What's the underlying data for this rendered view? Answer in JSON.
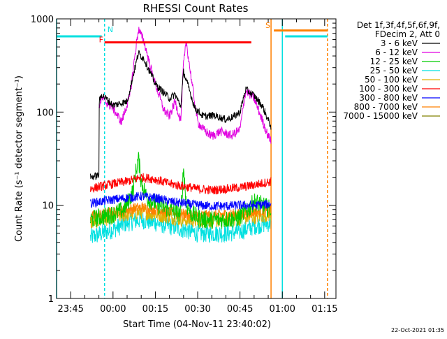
{
  "chart_data": {
    "type": "line",
    "title": "RHESSI Count Rates",
    "xlabel": "Start Time (04-Nov-11 23:40:02)",
    "ylabel": "Count Rate (s⁻¹ detector segment⁻¹)",
    "y_scale": "log",
    "ylim": [
      1,
      1000
    ],
    "xlim": [
      "23:40",
      "01:19"
    ],
    "x_ticks": [
      "23:45",
      "00:00",
      "00:15",
      "00:30",
      "00:45",
      "01:00",
      "01:15"
    ],
    "y_ticks": [
      "1",
      "10",
      "100",
      "1000"
    ],
    "legend": {
      "placement": "right",
      "header_line1": "Det 1f,3f,4f,5f,6f,9f,",
      "header_line2": "FDecim 2, Att 0",
      "entries": [
        {
          "label": "3 - 6 keV",
          "color": "#000000"
        },
        {
          "label": "6 - 12 keV",
          "color": "#e000e0"
        },
        {
          "label": "12 - 25 keV",
          "color": "#00cc00"
        },
        {
          "label": "25 - 50 keV",
          "color": "#00e0e0"
        },
        {
          "label": "50 - 100 keV",
          "color": "#e0b000"
        },
        {
          "label": "100 - 300 keV",
          "color": "#ff0000"
        },
        {
          "label": "300 - 800 keV",
          "color": "#0000ff"
        },
        {
          "label": "800 - 7000 keV",
          "color": "#ff8000"
        },
        {
          "label": "7000 - 15000 keV",
          "color": "#808000"
        }
      ]
    },
    "data_start": "23:52",
    "data_end": "00:56",
    "series": [
      {
        "name": "3 - 6 keV",
        "color": "#000000",
        "noise": 0.04,
        "x": [
          "23:52",
          "23:55",
          "23:55",
          "23:56",
          "00:00",
          "00:05",
          "00:09",
          "00:11",
          "00:15",
          "00:20",
          "00:22",
          "00:24",
          "00:25",
          "00:27",
          "00:29",
          "00:32",
          "00:36",
          "00:40",
          "00:43",
          "00:45",
          "00:47",
          "00:50",
          "00:53",
          "00:55",
          "00:56"
        ],
        "y": [
          20,
          21,
          125,
          155,
          118,
          130,
          430,
          370,
          200,
          140,
          155,
          115,
          270,
          175,
          110,
          90,
          92,
          83,
          90,
          100,
          175,
          150,
          115,
          82,
          70
        ]
      },
      {
        "name": "6 - 12 keV",
        "color": "#e000e0",
        "noise": 0.05,
        "x": [
          "23:55",
          "23:56",
          "00:00",
          "00:03",
          "00:06",
          "00:08",
          "00:09",
          "00:11",
          "00:14",
          "00:18",
          "00:20",
          "00:22",
          "00:24",
          "00:25",
          "00:26",
          "00:28",
          "00:30",
          "00:32",
          "00:35",
          "00:38",
          "00:42",
          "00:45",
          "00:47",
          "00:50",
          "00:53",
          "00:55",
          "00:56"
        ],
        "y": [
          115,
          140,
          110,
          78,
          150,
          460,
          780,
          570,
          250,
          105,
          90,
          130,
          80,
          330,
          560,
          200,
          78,
          65,
          55,
          62,
          56,
          65,
          170,
          140,
          80,
          55,
          50
        ]
      },
      {
        "name": "12 - 25 keV",
        "color": "#00cc00",
        "noise": 0.1,
        "x": [
          "23:52",
          "23:56",
          "00:00",
          "00:04",
          "00:07",
          "00:08",
          "00:09",
          "00:10",
          "00:12",
          "00:16",
          "00:20",
          "00:24",
          "00:25",
          "00:26",
          "00:28",
          "00:32",
          "00:38",
          "00:44",
          "00:48",
          "00:50",
          "00:53",
          "00:56"
        ],
        "y": [
          7,
          7.5,
          8,
          9,
          14,
          22,
          32,
          18,
          12,
          10,
          9,
          8,
          25,
          10,
          8,
          7,
          7,
          7.2,
          9,
          11,
          10,
          9
        ]
      },
      {
        "name": "25 - 50 keV",
        "color": "#00e0e0",
        "noise": 0.1,
        "x": [
          "23:52",
          "23:56",
          "00:00",
          "00:05",
          "00:10",
          "00:15",
          "00:20",
          "00:25",
          "00:30",
          "00:35",
          "00:40",
          "00:45",
          "00:50",
          "00:56"
        ],
        "y": [
          4.5,
          5,
          5.5,
          6.5,
          7,
          6.5,
          6,
          5.5,
          5,
          5,
          5,
          5.2,
          6,
          6.5
        ]
      },
      {
        "name": "50 - 100 keV",
        "color": "#e0b000",
        "noise": 0.08,
        "x": [
          "23:52",
          "23:56",
          "00:00",
          "00:05",
          "00:10",
          "00:15",
          "00:20",
          "00:25",
          "00:30",
          "00:35",
          "00:40",
          "00:45",
          "00:50",
          "00:56"
        ],
        "y": [
          6.5,
          7,
          7.5,
          8,
          8.5,
          8,
          7.5,
          7,
          6.8,
          6.8,
          7,
          7.2,
          7.5,
          8
        ]
      },
      {
        "name": "100 - 300 keV",
        "color": "#ff0000",
        "noise": 0.05,
        "x": [
          "23:52",
          "23:56",
          "00:00",
          "00:05",
          "00:10",
          "00:15",
          "00:20",
          "00:25",
          "00:30",
          "00:35",
          "00:40",
          "00:45",
          "00:50",
          "00:56"
        ],
        "y": [
          15,
          16,
          17,
          18,
          20,
          19,
          17,
          16,
          15,
          14.5,
          15,
          15.5,
          16.5,
          18
        ]
      },
      {
        "name": "300 - 800 keV",
        "color": "#0000ff",
        "noise": 0.05,
        "x": [
          "23:52",
          "23:56",
          "00:00",
          "00:05",
          "00:10",
          "00:15",
          "00:20",
          "00:25",
          "00:30",
          "00:35",
          "00:40",
          "00:45",
          "00:50",
          "00:56"
        ],
        "y": [
          10.5,
          11,
          11.5,
          12,
          12.5,
          12,
          11,
          10.5,
          10,
          9.8,
          9.8,
          10,
          10,
          10.3
        ]
      },
      {
        "name": "800 - 7000 keV",
        "color": "#ff8000",
        "noise": 0.06,
        "x": [
          "23:52",
          "23:56",
          "00:00",
          "00:05",
          "00:10",
          "00:15",
          "00:20",
          "00:25",
          "00:30",
          "00:35",
          "00:40",
          "00:45",
          "00:50",
          "00:56"
        ],
        "y": [
          7.5,
          8,
          8.5,
          9,
          9.5,
          9,
          8.5,
          8,
          7.8,
          7.8,
          8,
          8,
          8.5,
          9
        ]
      }
    ],
    "vertical_markers": [
      {
        "x": "23:40",
        "color": "#00e0e0",
        "dashed": false
      },
      {
        "x": "23:57",
        "color": "#00e0e0",
        "dashed": true
      },
      {
        "x": "00:56",
        "color": "#ff8000",
        "dashed": false
      },
      {
        "x": "01:00",
        "color": "#00e0e0",
        "dashed": false
      },
      {
        "x": "01:16",
        "color": "#ff8000",
        "dashed": true
      }
    ],
    "horizontal_bars": [
      {
        "x1": "23:40",
        "x2": "23:56",
        "y": 650,
        "color": "#00e0e0"
      },
      {
        "x1": "23:57",
        "x2": "00:49",
        "y": 560,
        "color": "#ff0000"
      },
      {
        "x1": "00:57",
        "x2": "01:16",
        "y": 750,
        "color": "#ff8000"
      },
      {
        "x1": "01:01",
        "x2": "01:16",
        "y": 650,
        "color": "#00e0e0"
      }
    ],
    "flags": [
      {
        "label": "N",
        "color": "#00e0e0",
        "x": "23:58",
        "y": 720
      },
      {
        "label": "F",
        "color": "#ff0000",
        "x": "23:55",
        "y": 560
      },
      {
        "label": "S",
        "color": "#ff8000",
        "x": "00:54",
        "y": 800
      }
    ],
    "footer_date": "22-Oct-2021 01:35"
  }
}
